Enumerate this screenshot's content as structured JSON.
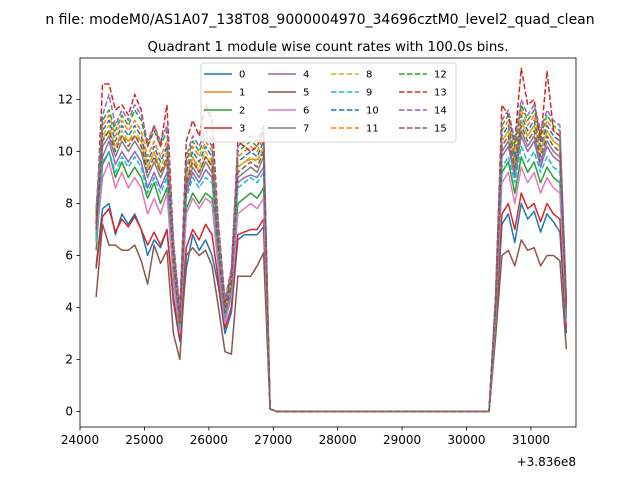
{
  "chart_data": {
    "type": "line",
    "suptitle": "n file: modeM0/AS1A07_138T08_9000004970_34696cztM0_level2_quad_clean",
    "title": "Quadrant 1 module wise count rates with 100.0s bins.",
    "xlabel": "",
    "ylabel": "",
    "x_offset_label": "+3.836e8",
    "xlim": [
      24000,
      31700
    ],
    "ylim": [
      -0.6,
      13.6
    ],
    "x_ticks": [
      24000,
      25000,
      26000,
      27000,
      28000,
      29000,
      30000,
      31000
    ],
    "y_ticks": [
      0,
      2,
      4,
      6,
      8,
      10,
      12
    ],
    "grid": false,
    "legend_position": "top-center",
    "x": [
      24250,
      24350,
      24450,
      24550,
      24650,
      24750,
      24850,
      24950,
      25050,
      25150,
      25250,
      25350,
      25450,
      25550,
      25650,
      25750,
      25850,
      25950,
      26050,
      26150,
      26250,
      26350,
      26450,
      26550,
      26650,
      26750,
      26850,
      26950,
      27050,
      30350,
      30450,
      30550,
      30650,
      30750,
      30850,
      30950,
      31050,
      31150,
      31250,
      31350,
      31450,
      31550
    ],
    "series": [
      {
        "name": "0",
        "color": "#1f77b4",
        "dash": "solid",
        "values": [
          5.6,
          7.8,
          8.0,
          6.8,
          7.6,
          7.2,
          7.6,
          7.0,
          6.0,
          6.6,
          6.3,
          7.0,
          4.2,
          2.7,
          5.5,
          6.8,
          6.2,
          6.6,
          6.0,
          4.8,
          3.0,
          3.8,
          6.6,
          6.8,
          6.8,
          6.8,
          7.1,
          0.1,
          0.0,
          0.0,
          3.0,
          7.2,
          7.6,
          6.5,
          8.0,
          7.4,
          7.7,
          6.9,
          7.6,
          7.3,
          6.9,
          3.0
        ]
      },
      {
        "name": "1",
        "color": "#ff7f0e",
        "dash": "solid",
        "values": [
          6.5,
          10.5,
          10.8,
          10.2,
          10.6,
          10.4,
          10.6,
          10.4,
          9.4,
          10.0,
          9.2,
          9.6,
          6.0,
          3.5,
          8.8,
          9.8,
          9.2,
          9.8,
          9.5,
          6.4,
          3.8,
          5.0,
          9.4,
          9.6,
          9.7,
          9.7,
          10.0,
          0.1,
          0.0,
          0.0,
          4.0,
          10.4,
          10.8,
          9.6,
          11.2,
          10.6,
          11.0,
          10.0,
          10.8,
          10.4,
          10.2,
          4.0
        ]
      },
      {
        "name": "2",
        "color": "#2ca02c",
        "dash": "solid",
        "values": [
          6.2,
          9.5,
          10.0,
          9.0,
          9.6,
          9.0,
          9.4,
          9.0,
          8.2,
          8.8,
          8.0,
          8.6,
          5.2,
          3.2,
          7.8,
          8.4,
          8.0,
          8.4,
          8.2,
          5.6,
          3.5,
          4.5,
          8.0,
          8.2,
          8.4,
          8.2,
          8.6,
          0.1,
          0.0,
          0.0,
          3.6,
          9.2,
          9.6,
          8.4,
          9.8,
          9.2,
          9.6,
          8.8,
          9.4,
          9.0,
          8.8,
          3.6
        ]
      },
      {
        "name": "3",
        "color": "#d62728",
        "dash": "solid",
        "values": [
          5.5,
          7.5,
          7.8,
          6.9,
          7.4,
          7.1,
          7.5,
          7.0,
          6.4,
          6.9,
          6.4,
          7.0,
          4.4,
          2.8,
          6.3,
          7.0,
          6.6,
          7.2,
          6.8,
          5.0,
          3.2,
          4.0,
          6.8,
          6.9,
          7.0,
          7.0,
          7.4,
          0.1,
          0.0,
          0.0,
          3.2,
          7.6,
          8.0,
          7.0,
          8.4,
          7.8,
          8.0,
          7.3,
          8.0,
          7.6,
          7.4,
          3.2
        ]
      },
      {
        "name": "4",
        "color": "#9467bd",
        "dash": "solid",
        "values": [
          6.8,
          9.8,
          10.4,
          9.5,
          10.0,
          9.6,
          10.0,
          9.6,
          8.6,
          9.2,
          8.6,
          9.2,
          5.6,
          3.4,
          8.4,
          9.2,
          8.8,
          9.3,
          9.0,
          6.0,
          3.6,
          4.8,
          8.8,
          9.0,
          9.1,
          9.0,
          9.4,
          0.1,
          0.0,
          0.0,
          3.8,
          9.8,
          10.2,
          9.0,
          10.6,
          10.0,
          10.4,
          9.4,
          10.2,
          9.8,
          9.6,
          3.8
        ]
      },
      {
        "name": "5",
        "color": "#8c564b",
        "dash": "solid",
        "values": [
          4.4,
          7.2,
          6.4,
          6.4,
          6.2,
          6.2,
          6.4,
          5.8,
          4.9,
          6.4,
          5.7,
          6.2,
          3.0,
          2.0,
          6.0,
          6.3,
          6.0,
          6.2,
          5.6,
          4.0,
          2.3,
          2.2,
          5.2,
          5.2,
          5.2,
          5.6,
          6.1,
          0.1,
          0.0,
          0.0,
          2.8,
          6.0,
          6.2,
          5.6,
          6.6,
          6.2,
          6.3,
          5.6,
          6.0,
          6.0,
          5.8,
          2.4
        ]
      },
      {
        "name": "6",
        "color": "#e377c2",
        "dash": "solid",
        "values": [
          6.5,
          9.0,
          9.6,
          8.6,
          9.2,
          8.6,
          9.0,
          8.6,
          7.6,
          8.2,
          7.6,
          8.4,
          5.0,
          3.0,
          7.6,
          8.2,
          7.8,
          8.2,
          8.0,
          5.4,
          3.4,
          4.4,
          7.6,
          7.8,
          8.0,
          7.8,
          8.2,
          0.1,
          0.0,
          0.0,
          3.4,
          8.8,
          9.2,
          8.0,
          9.4,
          8.8,
          9.2,
          8.4,
          9.0,
          8.6,
          8.4,
          3.4
        ]
      },
      {
        "name": "7",
        "color": "#7f7f7f",
        "dash": "solid",
        "values": [
          6.8,
          10.2,
          10.6,
          9.8,
          10.4,
          10.0,
          10.4,
          10.0,
          9.0,
          9.6,
          9.0,
          9.6,
          5.8,
          3.4,
          8.6,
          9.4,
          9.0,
          9.6,
          9.2,
          6.2,
          3.8,
          4.8,
          9.0,
          9.2,
          9.4,
          9.2,
          9.8,
          0.1,
          0.0,
          0.0,
          3.8,
          10.0,
          10.4,
          9.2,
          10.8,
          10.2,
          10.6,
          9.6,
          10.4,
          10.0,
          9.8,
          3.8
        ]
      },
      {
        "name": "8",
        "color": "#bcbd22",
        "dash": "dashed",
        "values": [
          7.0,
          10.6,
          11.0,
          10.2,
          10.8,
          10.4,
          10.8,
          10.4,
          9.4,
          10.0,
          9.4,
          10.0,
          6.0,
          3.6,
          9.0,
          9.8,
          9.4,
          10.0,
          9.6,
          6.4,
          3.9,
          5.0,
          9.4,
          9.6,
          9.8,
          9.6,
          10.2,
          0.1,
          0.0,
          0.0,
          4.0,
          10.4,
          10.8,
          9.6,
          11.2,
          10.6,
          11.0,
          10.0,
          10.8,
          10.4,
          10.2,
          4.0
        ]
      },
      {
        "name": "9",
        "color": "#17becf",
        "dash": "dashed",
        "values": [
          6.6,
          9.6,
          10.0,
          9.2,
          9.8,
          9.4,
          9.8,
          9.4,
          8.4,
          9.0,
          8.4,
          9.0,
          5.4,
          3.2,
          8.2,
          9.0,
          8.6,
          9.0,
          8.8,
          5.8,
          3.6,
          4.6,
          8.6,
          8.8,
          9.0,
          8.8,
          9.2,
          0.1,
          0.0,
          0.0,
          3.6,
          9.4,
          9.8,
          8.8,
          10.2,
          9.6,
          10.0,
          9.2,
          9.8,
          9.4,
          9.2,
          3.6
        ]
      },
      {
        "name": "10",
        "color": "#1f77b4",
        "dash": "dashed",
        "values": [
          7.2,
          10.8,
          11.2,
          10.4,
          11.0,
          10.6,
          11.0,
          10.6,
          9.6,
          10.2,
          9.6,
          10.2,
          6.2,
          3.6,
          9.2,
          10.0,
          9.6,
          10.2,
          9.8,
          6.6,
          4.0,
          5.2,
          9.6,
          9.8,
          10.0,
          9.8,
          10.4,
          0.1,
          0.0,
          0.0,
          4.1,
          10.6,
          11.0,
          9.8,
          11.4,
          10.8,
          11.2,
          10.2,
          11.0,
          10.6,
          10.4,
          4.0
        ]
      },
      {
        "name": "11",
        "color": "#ff7f0e",
        "dash": "dashed",
        "values": [
          7.4,
          11.0,
          11.4,
          10.6,
          11.2,
          10.8,
          11.2,
          10.8,
          9.8,
          10.4,
          9.8,
          10.4,
          6.2,
          3.7,
          9.4,
          10.2,
          9.8,
          10.4,
          10.0,
          6.8,
          4.1,
          5.2,
          9.8,
          10.0,
          10.2,
          10.0,
          10.6,
          0.1,
          0.0,
          0.0,
          4.2,
          10.8,
          11.2,
          10.0,
          11.6,
          11.0,
          11.4,
          10.4,
          11.2,
          10.8,
          10.6,
          4.1
        ]
      },
      {
        "name": "12",
        "color": "#2ca02c",
        "dash": "dashed",
        "values": [
          7.6,
          11.2,
          11.6,
          10.8,
          11.4,
          11.0,
          11.6,
          11.2,
          10.2,
          10.8,
          10.2,
          10.8,
          6.4,
          3.8,
          9.6,
          10.4,
          10.0,
          10.6,
          10.2,
          7.0,
          4.2,
          5.4,
          10.0,
          10.2,
          10.4,
          10.2,
          10.8,
          0.1,
          0.0,
          0.0,
          4.3,
          11.0,
          11.4,
          10.2,
          11.8,
          11.2,
          11.6,
          10.6,
          11.4,
          11.0,
          10.8,
          4.2
        ]
      },
      {
        "name": "13",
        "color": "#d62728",
        "dash": "dashed",
        "values": [
          7.2,
          12.6,
          12.6,
          11.6,
          11.8,
          11.4,
          12.2,
          11.6,
          10.2,
          11.0,
          10.2,
          11.8,
          6.6,
          3.8,
          10.4,
          11.2,
          10.6,
          11.8,
          11.2,
          7.2,
          4.2,
          5.4,
          10.4,
          10.2,
          10.0,
          10.2,
          10.8,
          0.1,
          0.0,
          0.0,
          4.3,
          11.8,
          11.4,
          10.4,
          13.2,
          11.8,
          12.0,
          10.4,
          13.1,
          10.8,
          10.6,
          4.2
        ]
      },
      {
        "name": "14",
        "color": "#9467bd",
        "dash": "dashed",
        "values": [
          7.8,
          11.4,
          12.2,
          11.0,
          11.6,
          11.2,
          11.8,
          11.4,
          10.4,
          11.0,
          10.4,
          11.0,
          6.6,
          3.9,
          9.8,
          10.6,
          10.2,
          10.8,
          10.4,
          7.2,
          4.3,
          5.5,
          10.2,
          10.4,
          10.6,
          10.4,
          11.0,
          0.1,
          0.0,
          0.0,
          4.4,
          11.2,
          11.6,
          10.4,
          12.0,
          11.4,
          11.8,
          10.8,
          11.6,
          11.2,
          11.0,
          4.3
        ]
      },
      {
        "name": "15",
        "color": "#8c564b",
        "dash": "dashed",
        "values": [
          7.0,
          10.4,
          10.8,
          10.0,
          10.6,
          10.2,
          10.6,
          10.2,
          9.2,
          9.8,
          9.2,
          9.8,
          5.8,
          3.4,
          8.8,
          9.6,
          9.2,
          9.8,
          9.4,
          6.2,
          3.8,
          4.9,
          9.2,
          9.4,
          9.6,
          9.4,
          10.0,
          0.1,
          0.0,
          0.0,
          3.9,
          10.2,
          10.6,
          9.4,
          11.0,
          10.4,
          10.8,
          9.8,
          10.6,
          10.2,
          10.0,
          3.9
        ]
      }
    ]
  }
}
